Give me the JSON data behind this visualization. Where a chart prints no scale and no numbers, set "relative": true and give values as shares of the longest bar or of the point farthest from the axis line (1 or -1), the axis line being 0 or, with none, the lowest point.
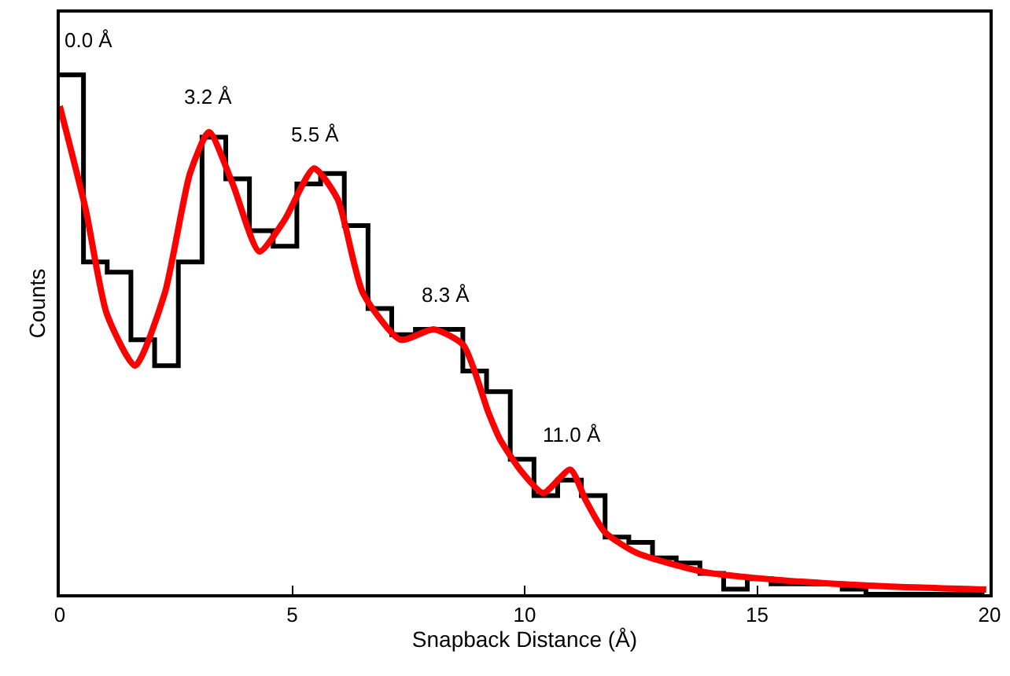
{
  "chart_data": {
    "type": "histogram",
    "relative": true,
    "xlabel": "Snapback Distance (Å)",
    "ylabel": "Counts",
    "xlim": [
      0,
      20
    ],
    "xticks": [
      0,
      5,
      10,
      15,
      20
    ],
    "bins": [
      0,
      0.51,
      1.02,
      1.53,
      2.04,
      2.55,
      3.06,
      3.57,
      4.08,
      4.59,
      5.1,
      5.61,
      6.12,
      6.63,
      7.14,
      7.65,
      8.16,
      8.67,
      9.18,
      9.69,
      10.2,
      10.71,
      11.22,
      11.73,
      12.24,
      12.75,
      13.26,
      13.77,
      14.28,
      14.79,
      15.3,
      15.81,
      16.32,
      16.83,
      17.34,
      17.85,
      18.36,
      18.87,
      19.38,
      19.89
    ],
    "series": [
      {
        "color": "#000000",
        "values": [
          1.0,
          0.64,
          0.62,
          0.49,
          0.44,
          0.64,
          0.88,
          0.8,
          0.7,
          0.67,
          0.79,
          0.81,
          0.71,
          0.55,
          0.5,
          0.51,
          0.51,
          0.43,
          0.39,
          0.26,
          0.19,
          0.22,
          0.19,
          0.11,
          0.1,
          0.07,
          0.06,
          0.04,
          0.01,
          0.03,
          0.02,
          0.02,
          0.02,
          0.01,
          0.0,
          0.0,
          0.0,
          0.0,
          0.0
        ]
      },
      {
        "type": "line",
        "color": "#ff0000",
        "x": [
          0,
          0.56,
          1.01,
          1.62,
          2.26,
          2.8,
          3.21,
          3.72,
          4.29,
          4.83,
          5.47,
          5.98,
          6.52,
          7.33,
          8.04,
          8.68,
          9.22,
          9.46,
          9.9,
          10.4,
          10.98,
          11.32,
          11.72,
          12.4,
          13.85,
          15.54,
          17.8,
          19.93
        ],
        "values": [
          0.94,
          0.74,
          0.54,
          0.44,
          0.58,
          0.81,
          0.89,
          0.79,
          0.66,
          0.72,
          0.82,
          0.76,
          0.58,
          0.49,
          0.51,
          0.48,
          0.35,
          0.3,
          0.24,
          0.195,
          0.24,
          0.18,
          0.12,
          0.08,
          0.043,
          0.027,
          0.015,
          0.009
        ]
      }
    ],
    "annotations": [
      {
        "text": "0.0 Å",
        "x": 0.0,
        "y": 1.0
      },
      {
        "text": "3.2 Å",
        "x": 3.2,
        "y": 0.89
      },
      {
        "text": "5.5 Å",
        "x": 5.5,
        "y": 0.82
      },
      {
        "text": "8.3 Å",
        "x": 8.3,
        "y": 0.51
      },
      {
        "text": "11.0 Å",
        "x": 11.0,
        "y": 0.24
      }
    ]
  }
}
